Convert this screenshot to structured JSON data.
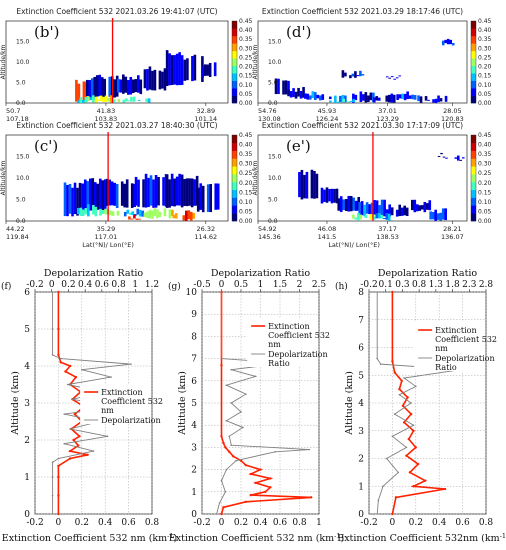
{
  "colors": {
    "extinction": "#ff2200",
    "depolarization": "#808080",
    "marker_line": "#ff0000",
    "grid": "#aaaaaa",
    "colormap": [
      "#00007f",
      "#0000ff",
      "#0060ff",
      "#00c0ff",
      "#40ffc0",
      "#a0ff60",
      "#ffff00",
      "#ffa000",
      "#ff4000",
      "#d00000",
      "#800000"
    ]
  },
  "curtain": {
    "colorbar_ticks": [
      "0.45",
      "0.40",
      "0.35",
      "0.30",
      "0.25",
      "0.20",
      "0.15",
      "0.10",
      "0.05",
      "0.00"
    ],
    "yticks": [
      "0.0",
      "5.0",
      "10.0",
      "15.0",
      "20.0"
    ],
    "ylabel": "Altitude/km",
    "xlabel": "Lat(°N)/ Lon(°E)",
    "panels": [
      {
        "id": "b",
        "label": "(b')",
        "title": "Extinction Coefficient 532   2021.03.26   19:41:07 (UTC)",
        "ticks": [
          {
            "lat": "50.7",
            "lon": "107.18"
          },
          {
            "lat": "41.83",
            "lon": "103.83"
          },
          {
            "lat": "32.89",
            "lon": "101.14"
          }
        ]
      },
      {
        "id": "d",
        "label": "(d')",
        "title": "Extinction Coefficient 532   2021.03.29   18:17:46 (UTC)",
        "ticks": [
          {
            "lat": "54.76",
            "lon": "130.08"
          },
          {
            "lat": "45.93",
            "lon": "126.24"
          },
          {
            "lat": "37.01",
            "lon": "123.29"
          },
          {
            "lat": "28.05",
            "lon": "120.83"
          }
        ]
      },
      {
        "id": "c",
        "label": "(c')",
        "title": "Extinction Coefficient 532   2021.03.27   18:40:30 (UTC)",
        "ticks": [
          {
            "lat": "44.22",
            "lon": "119.84"
          },
          {
            "lat": "35.29",
            "lon": "117.01"
          },
          {
            "lat": "26.32",
            "lon": "114.62"
          }
        ]
      },
      {
        "id": "e",
        "label": "(e')",
        "title": "Extinction Coefficient 532   2021.03.30   17:17:09 (UTC)",
        "ticks": [
          {
            "lat": "54.92",
            "lon": "145.36"
          },
          {
            "lat": "46.08",
            "lon": "141.5"
          },
          {
            "lat": "37.17",
            "lon": "138.53"
          },
          {
            "lat": "28.21",
            "lon": "136.07"
          }
        ]
      }
    ]
  },
  "profiles": {
    "ylabel": "Altitude (km)",
    "top_label": "Depolarization Ratio",
    "legend_extinction": [
      "Extinction",
      "Coefficient 532",
      "nm"
    ],
    "legend_depol_f": [
      "Depolarization"
    ],
    "legend_depol_gh": [
      "Depolarization",
      "Ratio"
    ],
    "panels": [
      {
        "id": "f",
        "label": "(f)",
        "xlabel": "Extinction Coefficient 532 nm (km",
        "bottom_ticks": [
          "-0.2",
          "0",
          "0.2",
          "0.4",
          "0.6",
          "0.8"
        ],
        "top_ticks": [
          "-0.2",
          "0",
          "0.2",
          "0.4",
          "0.6",
          "0.8",
          "1",
          "1.2"
        ],
        "y_ticks": [
          "0",
          "1",
          "2",
          "3",
          "4",
          "5",
          "6"
        ]
      },
      {
        "id": "g",
        "label": "(g)",
        "xlabel": "Extinction Coefficient 532 nm (km",
        "bottom_ticks": [
          "-0.2",
          "0",
          "0.2",
          "0.4",
          "0.6",
          "0.8",
          "1"
        ],
        "top_ticks": [
          "-0.5",
          "0",
          "0.5",
          "1",
          "1.5",
          "2",
          "2.5"
        ],
        "y_ticks": [
          "0",
          "1",
          "2",
          "3",
          "4",
          "5",
          "6",
          "7",
          "8",
          "9",
          "10"
        ]
      },
      {
        "id": "h",
        "label": "(h)",
        "xlabel": "Extinction Coefficient 532nm (km",
        "bottom_ticks": [
          "-0.2",
          "0",
          "0.2",
          "0.4",
          "0.6",
          "0.8"
        ],
        "top_ticks": [
          "-0.2",
          "0.1",
          "0.3",
          "0.8",
          "1.3",
          "1.8",
          "2.3",
          "2.8"
        ],
        "y_ticks": [
          "0",
          "1",
          "2",
          "3",
          "4",
          "5",
          "6",
          "7",
          "8"
        ]
      }
    ]
  },
  "chart_data": [
    {
      "type": "heatmap",
      "title": "Extinction Coefficient 532   2021.03.26   19:41:07 (UTC)",
      "panel": "(b')",
      "ylabel": "Altitude/km",
      "ylim": [
        0,
        20
      ],
      "zlim": [
        0,
        0.45
      ],
      "marker_lat": 41.83
    },
    {
      "type": "heatmap",
      "title": "Extinction Coefficient 532   2021.03.29   18:17:46 (UTC)",
      "panel": "(d')",
      "ylabel": "Altitude/km",
      "ylim": [
        0,
        20
      ],
      "zlim": [
        0,
        0.45
      ]
    },
    {
      "type": "heatmap",
      "title": "Extinction Coefficient 532   2021.03.27   18:40:30 (UTC)",
      "panel": "(c')",
      "ylabel": "Altitude/km",
      "xlabel": "Lat(°N)/ Lon(°E)",
      "ylim": [
        0,
        20
      ],
      "zlim": [
        0,
        0.45
      ],
      "marker_lat": 35.29
    },
    {
      "type": "heatmap",
      "title": "Extinction Coefficient 532   2021.03.30   17:17:09 (UTC)",
      "panel": "(e')",
      "ylabel": "Altitude/km",
      "xlabel": "Lat(°N)/ Lon(°E)",
      "ylim": [
        0,
        20
      ],
      "zlim": [
        0,
        0.45
      ],
      "marker_lat": 37.17
    },
    {
      "type": "line",
      "panel": "(f)",
      "ylabel": "Altitude (km)",
      "xlabel": "Extinction Coefficient 532 nm (km-1)",
      "xlim": [
        -0.2,
        0.8
      ],
      "ylim": [
        0,
        6
      ],
      "x2lim": [
        -0.2,
        1.3
      ],
      "series": [
        {
          "name": "Extinction Coefficient 532 nm",
          "y": [
            0,
            0.5,
            1.0,
            1.3,
            1.5,
            1.6,
            1.7,
            1.85,
            2.0,
            2.1,
            2.3,
            2.5,
            2.7,
            2.9,
            3.1,
            3.3,
            3.5,
            3.7,
            3.85,
            4.0,
            4.1,
            4.3,
            5.0,
            6.0
          ],
          "x": [
            0.0,
            0.0,
            0.0,
            0.0,
            0.1,
            0.25,
            0.1,
            0.17,
            0.13,
            0.18,
            0.11,
            0.2,
            0.14,
            0.22,
            0.12,
            0.19,
            0.1,
            0.15,
            0.06,
            0.1,
            0.02,
            0.0,
            0.0,
            0.0
          ]
        },
        {
          "name": "Depolarization",
          "y": [
            0,
            0.5,
            1.0,
            1.4,
            1.5,
            1.7,
            1.9,
            2.1,
            2.3,
            2.5,
            2.7,
            2.9,
            3.1,
            3.3,
            3.5,
            3.7,
            3.9,
            4.05,
            4.2,
            4.3,
            5.0,
            6.0
          ],
          "x": [
            -0.05,
            -0.05,
            -0.05,
            -0.05,
            0.0,
            0.3,
            0.05,
            0.42,
            0.1,
            0.35,
            0.05,
            0.5,
            0.12,
            0.38,
            0.08,
            0.45,
            0.2,
            0.62,
            0.02,
            -0.05,
            -0.05,
            -0.05
          ]
        }
      ]
    },
    {
      "type": "line",
      "panel": "(g)",
      "ylabel": "Altitude (km)",
      "xlabel": "Extinction Coefficient 532 nm (km-1)",
      "xlim": [
        -0.2,
        1.0
      ],
      "ylim": [
        0,
        10
      ],
      "x2lim": [
        -0.5,
        2.5
      ],
      "series": [
        {
          "name": "Extinction Coefficient 532 nm",
          "y": [
            0,
            0.3,
            0.55,
            0.75,
            0.85,
            1.0,
            1.2,
            1.4,
            1.6,
            1.8,
            2.0,
            2.2,
            2.4,
            2.6,
            2.8,
            3.0,
            3.2,
            3.5,
            6.7,
            10
          ],
          "x": [
            0.0,
            0.02,
            0.25,
            0.92,
            0.3,
            0.45,
            0.5,
            0.35,
            0.5,
            0.3,
            0.4,
            0.25,
            0.2,
            0.12,
            0.08,
            0.04,
            0.02,
            0.0,
            0.0,
            0.0
          ]
        },
        {
          "name": "Depolarization Ratio",
          "y": [
            0,
            0.5,
            1.0,
            1.5,
            2.0,
            2.4,
            2.8,
            2.9,
            3.1,
            3.5,
            3.9,
            4.2,
            4.6,
            5.0,
            5.4,
            5.8,
            6.2,
            6.5,
            6.8,
            7.0,
            10
          ],
          "x": [
            -0.05,
            -0.02,
            0.04,
            0.0,
            0.05,
            0.15,
            0.55,
            0.9,
            0.1,
            0.08,
            0.22,
            0.05,
            0.2,
            0.1,
            0.25,
            0.05,
            0.35,
            0.1,
            0.65,
            0.0,
            0.0
          ]
        }
      ]
    },
    {
      "type": "line",
      "panel": "(h)",
      "ylabel": "Altitude (km)",
      "xlabel": "Extinction Coefficient 532nm (km-1)",
      "xlim": [
        -0.2,
        0.8
      ],
      "ylim": [
        0,
        8
      ],
      "x2lim": [
        -0.2,
        2.8
      ],
      "series": [
        {
          "name": "Extinction Coefficient 532 nm",
          "y": [
            0,
            0.6,
            0.9,
            1.0,
            1.2,
            1.5,
            1.8,
            2.1,
            2.4,
            2.7,
            3.0,
            3.3,
            3.6,
            3.9,
            4.2,
            4.5,
            4.8,
            5.1,
            5.5,
            8.0
          ],
          "x": [
            0.0,
            0.03,
            0.45,
            0.18,
            0.28,
            0.15,
            0.22,
            0.12,
            0.2,
            0.14,
            0.18,
            0.1,
            0.16,
            0.09,
            0.13,
            0.06,
            0.08,
            0.02,
            0.0,
            0.0
          ]
        },
        {
          "name": "Depolarization Ratio",
          "y": [
            0,
            0.5,
            1.0,
            1.5,
            2.0,
            2.4,
            2.8,
            3.2,
            3.6,
            4.0,
            4.3,
            4.6,
            4.9,
            5.2,
            5.4,
            5.6,
            8.0
          ],
          "x": [
            -0.13,
            -0.12,
            -0.08,
            0.05,
            -0.05,
            0.12,
            0.0,
            0.18,
            0.02,
            0.16,
            0.06,
            0.2,
            0.1,
            0.58,
            -0.1,
            -0.13,
            -0.13
          ]
        }
      ]
    }
  ]
}
